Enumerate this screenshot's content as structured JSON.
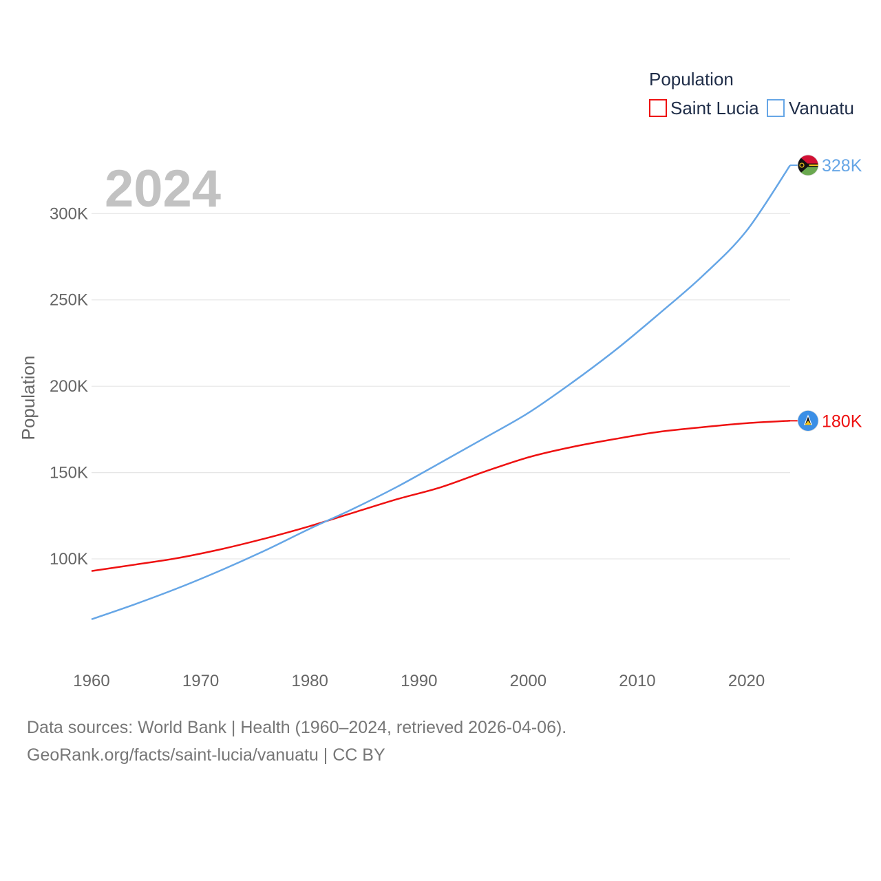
{
  "chart_data": {
    "type": "line",
    "year_label": "2024",
    "ylabel": "Population",
    "xlim": [
      1960,
      2024
    ],
    "ylim": [
      45000,
      336000
    ],
    "x_ticks": [
      1960,
      1970,
      1980,
      1990,
      2000,
      2010,
      2020
    ],
    "x_tick_labels": [
      "1960",
      "1970",
      "1980",
      "1990",
      "2000",
      "2010",
      "2020"
    ],
    "y_ticks": [
      100000,
      150000,
      200000,
      250000,
      300000
    ],
    "y_tick_labels": [
      "100K",
      "150K",
      "200K",
      "250K",
      "300K"
    ],
    "legend": {
      "title": "Population",
      "position": "top-right"
    },
    "x": [
      1960,
      1964,
      1968,
      1972,
      1976,
      1980,
      1984,
      1988,
      1992,
      1996,
      2000,
      2004,
      2008,
      2012,
      2016,
      2020,
      2024
    ],
    "series": [
      {
        "name": "Saint Lucia",
        "color": "#ee1111",
        "end_label": "180K",
        "flag_icon": "saint-lucia-flag-icon",
        "values": [
          93000,
          96700,
          100600,
          105800,
          112000,
          119000,
          126800,
          134600,
          141500,
          150500,
          158800,
          164800,
          169500,
          173600,
          176300,
          178600,
          180000
        ]
      },
      {
        "name": "Vanuatu",
        "color": "#66a6e6",
        "end_label": "328K",
        "flag_icon": "vanuatu-flag-icon",
        "values": [
          65000,
          73800,
          83300,
          93800,
          105200,
          117500,
          129100,
          141800,
          155800,
          170000,
          184500,
          202000,
          221000,
          242000,
          264000,
          290000,
          328000
        ]
      }
    ]
  },
  "footer": {
    "line1": "Data sources: World Bank | Health (1960–2024, retrieved 2026-04-06).",
    "line2": "GeoRank.org/facts/saint-lucia/vanuatu | CC BY"
  }
}
